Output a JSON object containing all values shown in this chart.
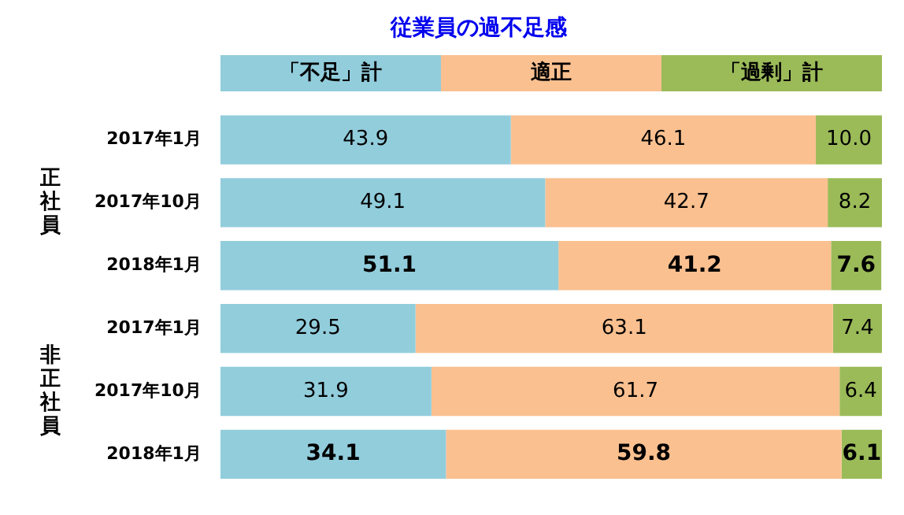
{
  "chart_data": {
    "type": "bar",
    "orientation": "horizontal",
    "stacked": true,
    "title": "従業員の過不足感",
    "categories": [
      "2017年1月",
      "2017年10月",
      "2018年1月",
      "2017年1月",
      "2017年10月",
      "2018年1月"
    ],
    "series": [
      {
        "name": "「不足」計",
        "color": "#92cddc",
        "values": [
          43.9,
          49.1,
          51.1,
          29.5,
          31.9,
          34.1
        ],
        "value_labels": [
          "43.9",
          "49.1",
          "51.1",
          "29.5",
          "31.9",
          "34.1"
        ]
      },
      {
        "name": "適正",
        "color": "#fac090",
        "values": [
          46.1,
          42.7,
          41.2,
          63.1,
          61.7,
          59.8
        ],
        "value_labels": [
          "46.1",
          "42.7",
          "41.2",
          "63.1",
          "61.7",
          "59.8"
        ]
      },
      {
        "name": "「過剰」計",
        "color": "#9bbb59",
        "values": [
          10.0,
          8.2,
          7.6,
          7.4,
          6.4,
          6.1
        ],
        "value_labels": [
          "10.0",
          "8.2",
          "7.6",
          "7.4",
          "6.4",
          "6.1"
        ]
      }
    ],
    "annotations": [
      "正社員",
      "非正社員"
    ],
    "xlim": [
      0,
      100
    ],
    "tick_labels": "y",
    "grid": false,
    "legend": "top"
  }
}
